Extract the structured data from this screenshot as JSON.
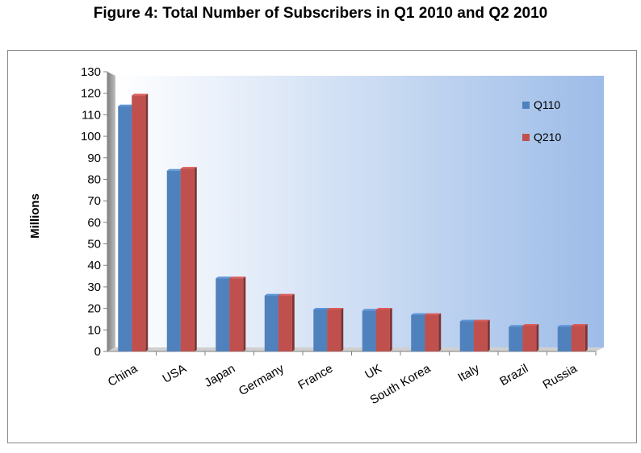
{
  "chart_data": {
    "type": "bar",
    "title": "Figure 4: Total Number of Subscribers in Q1 2010 and Q2 2010",
    "xlabel": "",
    "ylabel": "Millions",
    "ylim": [
      0,
      130
    ],
    "yticks": [
      0,
      10,
      20,
      30,
      40,
      50,
      60,
      70,
      80,
      90,
      100,
      110,
      120,
      130
    ],
    "categories": [
      "China",
      "USA",
      "Japan",
      "Germany",
      "France",
      "UK",
      "South Korea",
      "Italy",
      "Brazil",
      "Russia"
    ],
    "series": [
      {
        "name": "Q110",
        "color": "#4f81bd",
        "values": [
          114,
          84,
          34,
          26,
          19.5,
          19,
          17,
          14,
          11.5,
          11.5
        ]
      },
      {
        "name": "Q210",
        "color": "#c0504d",
        "values": [
          119,
          85,
          34,
          26,
          19.5,
          19.5,
          17,
          14,
          12,
          12
        ]
      }
    ],
    "legend": "top-right",
    "grid": false
  }
}
